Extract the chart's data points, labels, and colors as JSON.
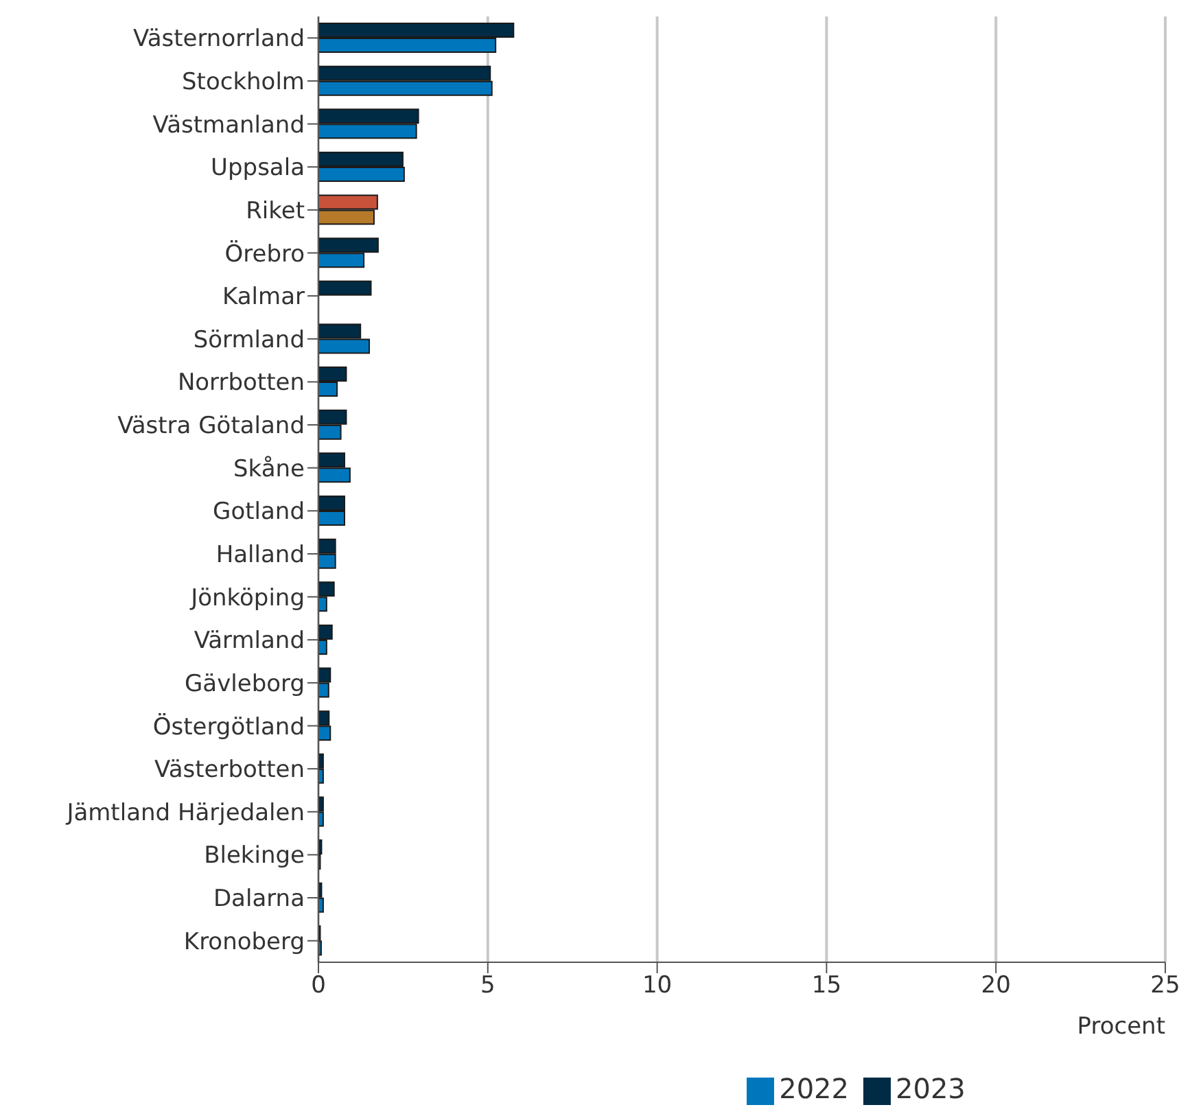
{
  "chart_data": {
    "type": "bar",
    "orientation": "horizontal",
    "xlabel": "Procent",
    "categories": [
      "Västernorrland",
      "Stockholm",
      "Västmanland",
      "Uppsala",
      "Riket",
      "Örebro",
      "Kalmar",
      "Sörmland",
      "Norrbotten",
      "Västra Götaland",
      "Skåne",
      "Gotland",
      "Halland",
      "Jönköping",
      "Värmland",
      "Gävleborg",
      "Östergötland",
      "Västerbotten",
      "Jämtland Härjedalen",
      "Blekinge",
      "Dalarna",
      "Kronoberg"
    ],
    "series": [
      {
        "name": "2023",
        "color": "#002b45",
        "colors": [
          "#002b45",
          "#002b45",
          "#002b45",
          "#002b45",
          "#c9523a",
          "#002b45",
          "#002b45",
          "#002b45",
          "#002b45",
          "#002b45",
          "#002b45",
          "#002b45",
          "#002b45",
          "#002b45",
          "#002b45",
          "#002b45",
          "#002b45",
          "#002b45",
          "#002b45",
          "#002b45",
          "#002b45",
          "#002b45"
        ],
        "values": [
          5.76,
          5.07,
          2.95,
          2.49,
          1.74,
          1.76,
          1.55,
          1.24,
          0.82,
          0.82,
          0.77,
          0.77,
          0.5,
          0.46,
          0.4,
          0.35,
          0.31,
          0.14,
          0.14,
          0.09,
          0.09,
          0.05
        ]
      },
      {
        "name": "2022",
        "color": "#0077bd",
        "colors": [
          "#0077bd",
          "#0077bd",
          "#0077bd",
          "#0077bd",
          "#b57a2a",
          "#0077bd",
          "#0077bd",
          "#0077bd",
          "#0077bd",
          "#0077bd",
          "#0077bd",
          "#0077bd",
          "#0077bd",
          "#0077bd",
          "#0077bd",
          "#0077bd",
          "#0077bd",
          "#0077bd",
          "#0077bd",
          "#0077bd",
          "#0077bd",
          "#0077bd"
        ],
        "values": [
          5.23,
          5.12,
          2.89,
          2.53,
          1.64,
          1.34,
          null,
          1.5,
          0.55,
          0.66,
          0.93,
          0.77,
          0.5,
          0.24,
          0.24,
          0.3,
          0.35,
          0.14,
          0.14,
          0.05,
          0.14,
          0.08
        ]
      }
    ],
    "xlim": [
      0,
      25
    ],
    "xticks": [
      0,
      5,
      10,
      15,
      20,
      25
    ],
    "grid": "x",
    "legend": "bottom"
  }
}
